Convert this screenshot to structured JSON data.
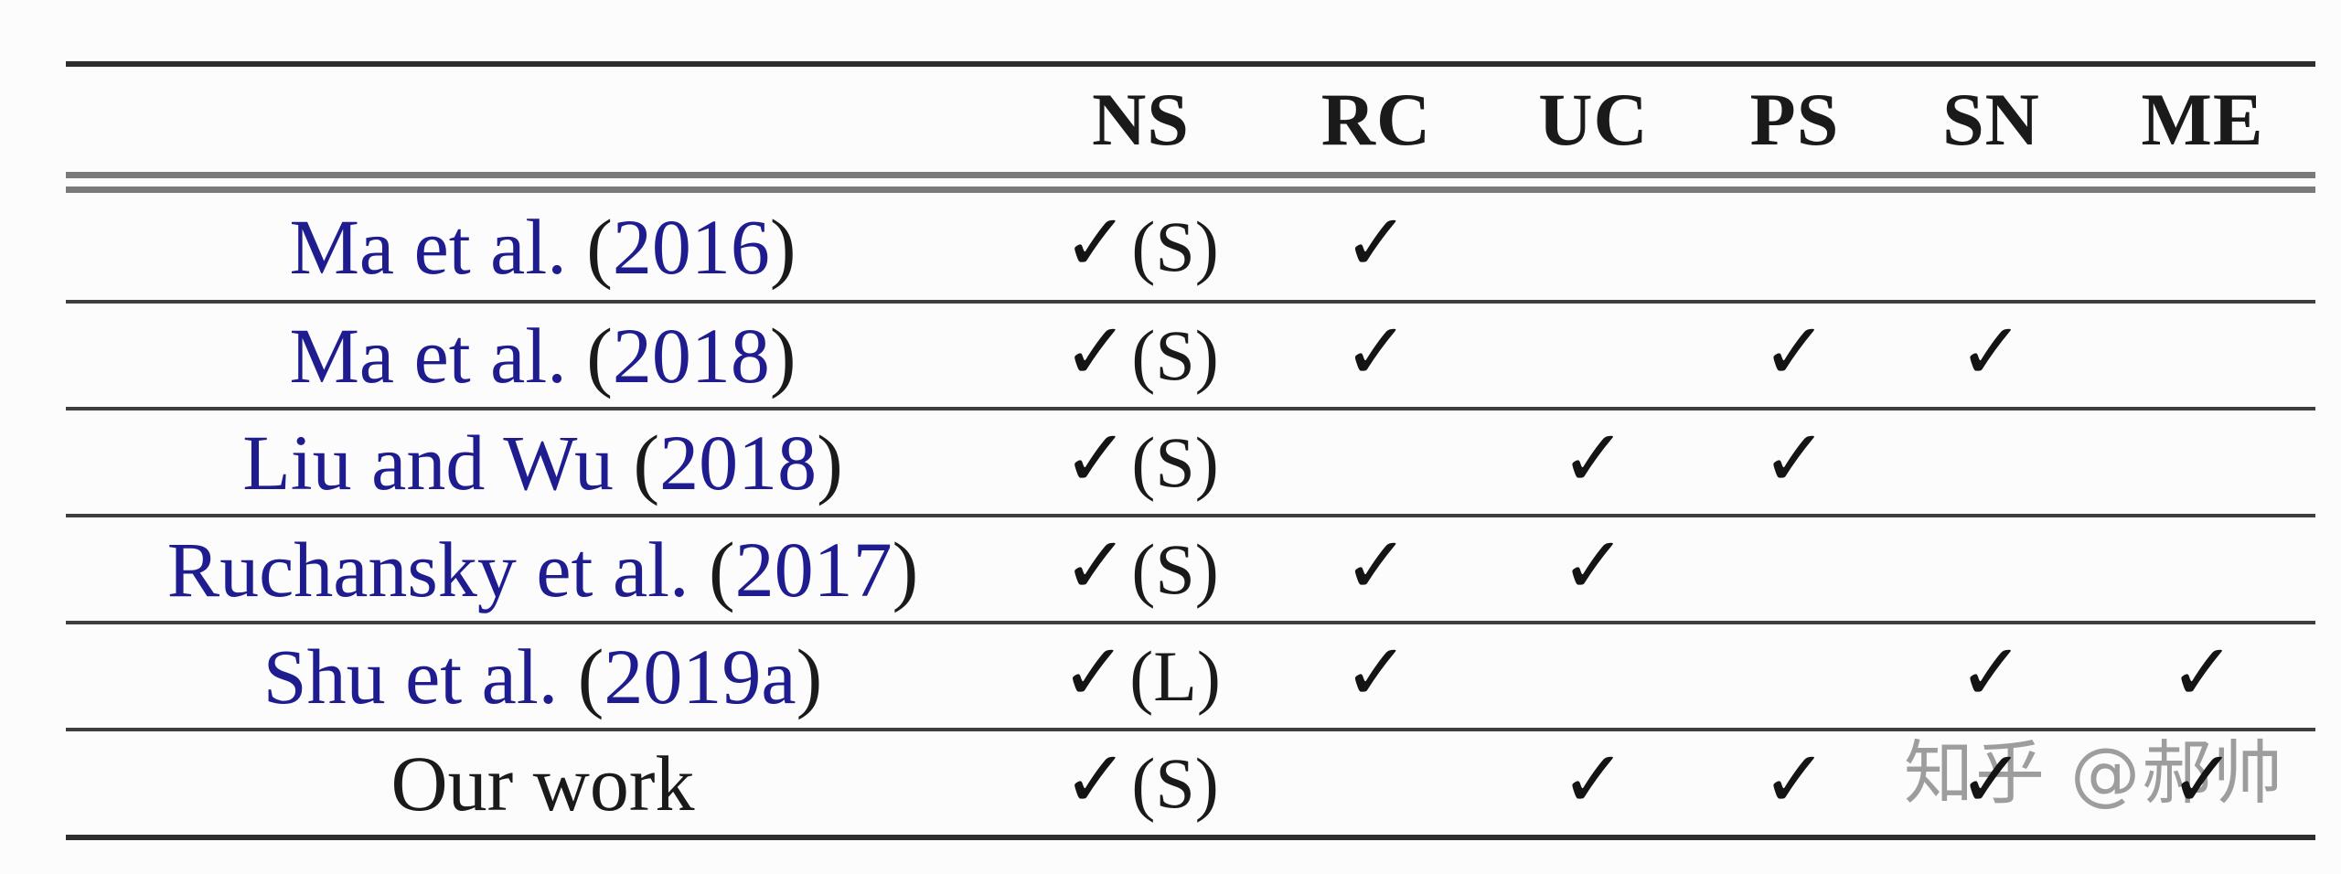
{
  "colors": {
    "link_navy": "#1e1c8f",
    "text_black": "#1a1a1a",
    "check_black": "#141414",
    "rule_dark": "#2d2d2d",
    "rule_inner": "#3e3e3e",
    "rule_double": "#7a7a7a",
    "watermark_gray": "#9d9d9d",
    "background": "#fcfcfc"
  },
  "table": {
    "check_glyph": "✓",
    "header": {
      "columns": [
        "NS",
        "RC",
        "UC",
        "PS",
        "SN",
        "ME"
      ]
    },
    "rows": [
      {
        "author": "Ma et al.",
        "year": "2016",
        "cells": [
          "S",
          "check",
          "",
          "",
          "",
          ""
        ]
      },
      {
        "author": "Ma et al.",
        "year": "2018",
        "cells": [
          "S",
          "check",
          "",
          "check",
          "check",
          ""
        ]
      },
      {
        "author": "Liu and Wu",
        "year": "2018",
        "cells": [
          "S",
          "",
          "check",
          "check",
          "",
          ""
        ]
      },
      {
        "author": "Ruchansky et al.",
        "year": "2017",
        "cells": [
          "S",
          "check",
          "check",
          "",
          "",
          ""
        ]
      },
      {
        "author": "Shu et al.",
        "year": "2019a",
        "cells": [
          "L",
          "check",
          "",
          "",
          "check",
          "check"
        ]
      },
      {
        "author": "Our work",
        "year": null,
        "cells": [
          "S",
          "",
          "check",
          "check",
          "check",
          "check"
        ]
      }
    ]
  },
  "watermark": {
    "text": "知乎 @郝帅"
  }
}
